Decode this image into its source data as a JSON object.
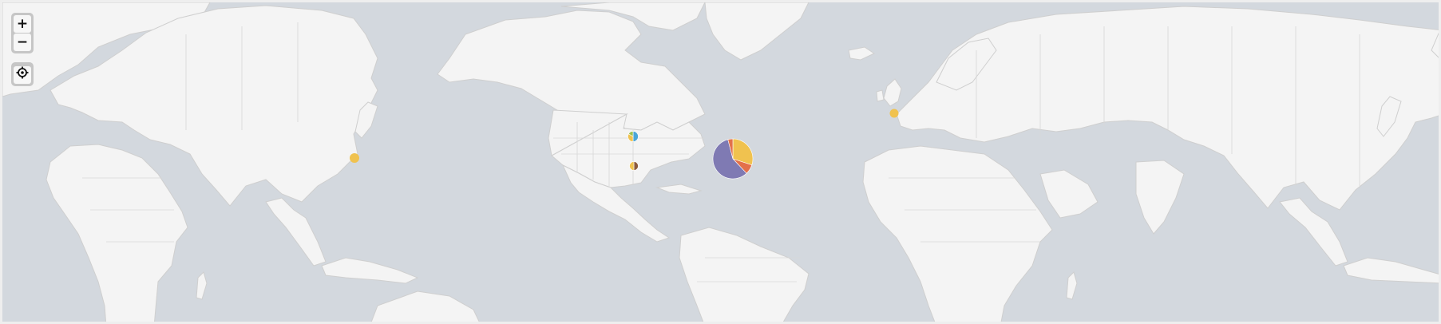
{
  "controls": {
    "zoom_in_symbol": "+",
    "zoom_out_symbol": "−",
    "locate_icon": "crosshair-target-icon"
  },
  "colors": {
    "ocean": "#d3d8de",
    "land": "#f4f4f4",
    "border": "#d7d7d7",
    "palette": [
      "#f0c24f",
      "#e3714b",
      "#7f7ab3",
      "#4aa6d8",
      "#9ac152",
      "#8c5a3c"
    ]
  },
  "markers": [
    {
      "name": "marker-east-china",
      "slices": [
        {
          "value": 1,
          "color": "#f0c24f"
        }
      ]
    },
    {
      "name": "marker-pacific-northwest",
      "slices": [
        {
          "value": 3,
          "color": "#4aa6d8"
        },
        {
          "value": 2,
          "color": "#f0c24f"
        },
        {
          "value": 1,
          "color": "#9ac152"
        }
      ]
    },
    {
      "name": "marker-california",
      "slices": [
        {
          "value": 1,
          "color": "#8c5a3c"
        },
        {
          "value": 1,
          "color": "#f0c24f"
        }
      ]
    },
    {
      "name": "marker-us-east",
      "slices": [
        {
          "value": 30,
          "color": "#f0c24f"
        },
        {
          "value": 8,
          "color": "#e3714b"
        },
        {
          "value": 58,
          "color": "#7f7ab3"
        },
        {
          "value": 4,
          "color": "#e3714b"
        }
      ]
    },
    {
      "name": "marker-united-kingdom",
      "slices": [
        {
          "value": 1,
          "color": "#f0c24f"
        }
      ]
    }
  ]
}
